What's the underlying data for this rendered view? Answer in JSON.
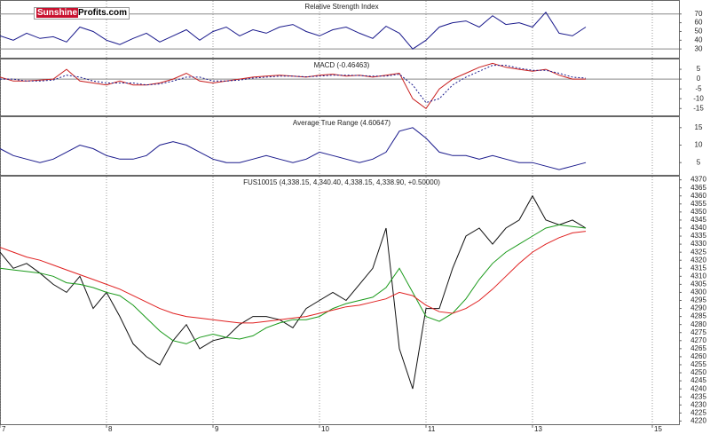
{
  "logo": {
    "brand": "Sunshine",
    "rest": "Profits.com"
  },
  "chart_data": [
    {
      "type": "line",
      "title": "Relative Strength Index",
      "x": [
        0,
        3,
        6,
        9,
        12,
        15,
        18,
        21,
        24,
        27,
        30,
        33,
        36,
        39,
        42,
        45,
        48,
        51,
        54,
        57,
        60,
        63,
        66,
        69,
        72,
        75,
        78,
        81,
        84,
        87,
        90,
        93,
        96,
        99,
        102,
        105,
        108,
        111,
        114,
        117,
        120,
        123,
        126,
        129,
        132
      ],
      "xlim": [
        0,
        153
      ],
      "ylim": [
        20,
        85
      ],
      "yticks": [
        30,
        40,
        50,
        60,
        70
      ],
      "levels": [
        30,
        70
      ],
      "series": [
        {
          "color": "#1a1a8c",
          "values": [
            45,
            40,
            48,
            42,
            44,
            38,
            55,
            50,
            40,
            35,
            42,
            48,
            38,
            45,
            52,
            40,
            50,
            55,
            45,
            52,
            48,
            55,
            58,
            50,
            45,
            52,
            55,
            48,
            42,
            56,
            48,
            30,
            40,
            55,
            60,
            62,
            55,
            68,
            58,
            60,
            55,
            72,
            48,
            45,
            55
          ]
        }
      ]
    },
    {
      "type": "line",
      "title": "MACD (-0.46463)",
      "x": [
        0,
        3,
        6,
        9,
        12,
        15,
        18,
        21,
        24,
        27,
        30,
        33,
        36,
        39,
        42,
        45,
        48,
        51,
        54,
        57,
        60,
        63,
        66,
        69,
        72,
        75,
        78,
        81,
        84,
        87,
        90,
        93,
        96,
        99,
        102,
        105,
        108,
        111,
        114,
        117,
        120,
        123,
        126,
        129,
        132
      ],
      "xlim": [
        0,
        153
      ],
      "ylim": [
        -18.5,
        10
      ],
      "yticks": [
        -15,
        -10,
        -5,
        0,
        5
      ],
      "levels": [
        0
      ],
      "series": [
        {
          "color": "#c81e1e",
          "style": "solid",
          "values": [
            1,
            -1,
            -1,
            -0.5,
            0,
            5,
            -1,
            -2,
            -3,
            -1,
            -3,
            -3,
            -2,
            0,
            3,
            -1,
            -2,
            -1,
            0,
            1,
            1.5,
            2,
            1.5,
            1,
            2,
            2.5,
            1.5,
            2,
            1,
            2,
            3,
            -10,
            -15,
            -5,
            0,
            3,
            6,
            8,
            6,
            5,
            4,
            5,
            2,
            0,
            0
          ]
        },
        {
          "color": "#1a1a8c",
          "style": "dotted",
          "values": [
            0,
            0,
            -1,
            -1,
            -0.5,
            2,
            1,
            -1,
            -2,
            -2,
            -2,
            -3,
            -2.5,
            -1,
            1,
            1,
            -1,
            -1,
            -0.5,
            0.5,
            1,
            1.5,
            1.5,
            1.2,
            1.5,
            2,
            2,
            1.8,
            1.5,
            1.5,
            2.5,
            -3,
            -12,
            -10,
            -3,
            1,
            4,
            7,
            7,
            5.5,
            4.5,
            4.5,
            3,
            1,
            0.5
          ]
        }
      ]
    },
    {
      "type": "line",
      "title": "Average True Range (4.60647)",
      "x": [
        0,
        3,
        6,
        9,
        12,
        15,
        18,
        21,
        24,
        27,
        30,
        33,
        36,
        39,
        42,
        45,
        48,
        51,
        54,
        57,
        60,
        63,
        66,
        69,
        72,
        75,
        78,
        81,
        84,
        87,
        90,
        93,
        96,
        99,
        102,
        105,
        108,
        111,
        114,
        117,
        120,
        123,
        126,
        129,
        132
      ],
      "xlim": [
        0,
        153
      ],
      "ylim": [
        1.5,
        18
      ],
      "yticks": [
        5,
        10,
        15
      ],
      "series": [
        {
          "color": "#1a1a8c",
          "values": [
            9,
            7,
            6,
            5,
            6,
            8,
            10,
            9,
            7,
            6,
            6,
            7,
            10,
            11,
            10,
            8,
            6,
            5,
            5,
            6,
            7,
            6,
            5,
            6,
            8,
            7,
            6,
            5,
            6,
            8,
            14,
            15,
            12,
            8,
            7,
            7,
            6,
            7,
            6,
            5,
            5,
            4,
            3,
            4,
            5
          ]
        }
      ]
    },
    {
      "type": "line",
      "title": "FUS10015 (4,338.15, 4,340.40, 4,338.15, 4,338.90, +0.50000)",
      "x": [
        0,
        3,
        6,
        9,
        12,
        15,
        18,
        21,
        24,
        27,
        30,
        33,
        36,
        39,
        42,
        45,
        48,
        51,
        54,
        57,
        60,
        63,
        66,
        69,
        72,
        75,
        78,
        81,
        84,
        87,
        90,
        93,
        96,
        99,
        102,
        105,
        108,
        111,
        114,
        117,
        120,
        123,
        126,
        129,
        132
      ],
      "xlim": [
        0,
        153
      ],
      "ylim": [
        4218,
        4372
      ],
      "yticks": [
        4220,
        4225,
        4230,
        4235,
        4240,
        4245,
        4250,
        4255,
        4260,
        4265,
        4270,
        4275,
        4280,
        4285,
        4290,
        4295,
        4300,
        4305,
        4310,
        4315,
        4320,
        4325,
        4330,
        4335,
        4340,
        4345,
        4350,
        4355,
        4360,
        4365,
        4370
      ],
      "xticks": [
        {
          "value": 0,
          "label": "7"
        },
        {
          "value": 24,
          "label": "8"
        },
        {
          "value": 48,
          "label": "9"
        },
        {
          "value": 72,
          "label": "10"
        },
        {
          "value": 96,
          "label": "11"
        },
        {
          "value": 120,
          "label": "13"
        },
        {
          "value": 147,
          "label": "15"
        }
      ],
      "series": [
        {
          "color": "#111111",
          "style": "solid",
          "values": [
            4325,
            4315,
            4318,
            4312,
            4305,
            4300,
            4310,
            4290,
            4300,
            4285,
            4268,
            4260,
            4255,
            4270,
            4280,
            4265,
            4270,
            4272,
            4280,
            4285,
            4285,
            4283,
            4278,
            4290,
            4295,
            4300,
            4295,
            4305,
            4315,
            4340,
            4265,
            4240,
            4290,
            4290,
            4315,
            4335,
            4340,
            4330,
            4340,
            4345,
            4360,
            4345,
            4342,
            4345,
            4340
          ]
        },
        {
          "color": "#1a9a1a",
          "style": "solid",
          "values": [
            4315,
            4314,
            4313,
            4312,
            4310,
            4306,
            4305,
            4303,
            4300,
            4298,
            4292,
            4284,
            4276,
            4270,
            4268,
            4272,
            4274,
            4272,
            4271,
            4273,
            4278,
            4281,
            4283,
            4283,
            4285,
            4290,
            4293,
            4295,
            4297,
            4303,
            4315,
            4300,
            4285,
            4282,
            4287,
            4296,
            4308,
            4318,
            4325,
            4330,
            4335,
            4340,
            4342,
            4341,
            4340
          ]
        },
        {
          "color": "#e02020",
          "style": "solid",
          "values": [
            4328,
            4325,
            4322,
            4320,
            4317,
            4314,
            4311,
            4308,
            4305,
            4302,
            4298,
            4294,
            4290,
            4287,
            4285,
            4284,
            4283,
            4282,
            4281,
            4281,
            4282,
            4283,
            4284,
            4285,
            4287,
            4289,
            4291,
            4292,
            4294,
            4296,
            4300,
            4298,
            4292,
            4288,
            4287,
            4290,
            4295,
            4302,
            4310,
            4318,
            4325,
            4330,
            4334,
            4337,
            4338
          ]
        }
      ]
    }
  ]
}
